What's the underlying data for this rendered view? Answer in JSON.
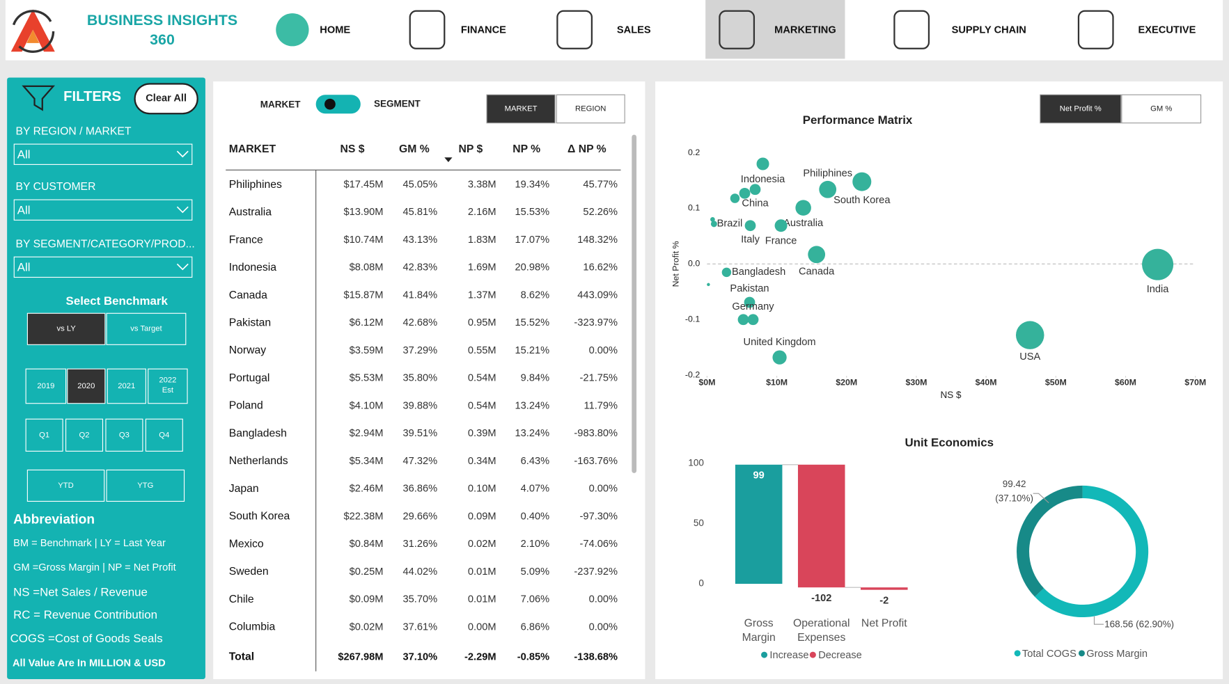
{
  "header": {
    "title_line1": "BUSINESS INSIGHTS",
    "title_line2": "360",
    "nav": [
      "HOME",
      "FINANCE",
      "SALES",
      "MARKETING",
      "SUPPLY CHAIN",
      "EXECUTIVE"
    ],
    "active": 3
  },
  "filters": {
    "title": "FILTERS",
    "clear": "Clear All",
    "dropdowns": [
      {
        "label": "BY REGION / MARKET",
        "value": "All"
      },
      {
        "label": "BY CUSTOMER",
        "value": "All"
      },
      {
        "label": "BY SEGMENT/CATEGORY/PROD...",
        "value": "All"
      }
    ],
    "benchmark_title": "Select Benchmark",
    "benchmark": [
      "vs LY",
      "vs Target"
    ],
    "benchmark_active": 0,
    "years": [
      "2019",
      "2020",
      "2021",
      "2022 Est"
    ],
    "year_active": 1,
    "quarters": [
      "Q1",
      "Q2",
      "Q3",
      "Q4"
    ],
    "periods": [
      "YTD",
      "YTG"
    ],
    "abbreviation_title": "Abbreviation",
    "abbreviations": [
      "BM = Benchmark  |  LY = Last Year",
      "GM =Gross Margin  |  NP = Net Profit",
      "NS =Net Sales / Revenue",
      "RC = Revenue Contribution",
      "COGS =Cost of Goods Seals"
    ],
    "note": "All Value Are In MILLION & USD"
  },
  "table": {
    "toggle": [
      "MARKET",
      "SEGMENT"
    ],
    "view_buttons": [
      "MARKET",
      "REGION"
    ],
    "view_active": 0,
    "columns": [
      "MARKET",
      "NS $",
      "GM %",
      "NP $",
      "NP %",
      "Δ NP %"
    ],
    "rows": [
      [
        "Philiphines",
        "$17.45M",
        "45.05%",
        "3.38M",
        "19.34%",
        "45.77%"
      ],
      [
        "Australia",
        "$13.90M",
        "45.81%",
        "2.16M",
        "15.53%",
        "52.26%"
      ],
      [
        "France",
        "$10.74M",
        "43.13%",
        "1.83M",
        "17.07%",
        "148.32%"
      ],
      [
        "Indonesia",
        "$8.08M",
        "42.83%",
        "1.69M",
        "20.98%",
        "16.62%"
      ],
      [
        "Canada",
        "$15.87M",
        "41.84%",
        "1.37M",
        "8.62%",
        "443.09%"
      ],
      [
        "Pakistan",
        "$6.12M",
        "42.68%",
        "0.95M",
        "15.52%",
        "-323.97%"
      ],
      [
        "Norway",
        "$3.59M",
        "37.29%",
        "0.55M",
        "15.21%",
        "0.00%"
      ],
      [
        "Portugal",
        "$5.53M",
        "35.80%",
        "0.54M",
        "9.84%",
        "-21.75%"
      ],
      [
        "Poland",
        "$4.10M",
        "39.88%",
        "0.54M",
        "13.24%",
        "11.79%"
      ],
      [
        "Bangladesh",
        "$2.94M",
        "39.51%",
        "0.39M",
        "13.24%",
        "-983.80%"
      ],
      [
        "Netherlands",
        "$5.34M",
        "47.32%",
        "0.34M",
        "6.43%",
        "-163.76%"
      ],
      [
        "Japan",
        "$2.46M",
        "36.86%",
        "0.10M",
        "4.07%",
        "0.00%"
      ],
      [
        "South Korea",
        "$22.38M",
        "29.66%",
        "0.09M",
        "0.40%",
        "-97.30%"
      ],
      [
        "Mexico",
        "$0.84M",
        "31.26%",
        "0.02M",
        "2.10%",
        "-74.06%"
      ],
      [
        "Sweden",
        "$0.25M",
        "44.02%",
        "0.01M",
        "5.09%",
        "-237.92%"
      ],
      [
        "Chile",
        "$0.09M",
        "35.70%",
        "0.01M",
        "7.06%",
        "0.00%"
      ],
      [
        "Columbia",
        "$0.02M",
        "37.61%",
        "0.00M",
        "6.86%",
        "0.00%"
      ]
    ],
    "total": [
      "Total",
      "$267.98M",
      "37.10%",
      "-2.29M",
      "-0.85%",
      "-138.68%"
    ]
  },
  "scatter": {
    "type": "scatter",
    "title": "Performance Matrix",
    "buttons": [
      "Net Profit %",
      "GM %"
    ],
    "button_active": 0,
    "x_label": "NS $",
    "y_label": "Net Profit %",
    "color": "#35b29b",
    "xlim": [
      0,
      70
    ],
    "xticks": [
      {
        "value": 0,
        "label": "$0M"
      },
      {
        "value": 10,
        "label": "$10M"
      },
      {
        "value": 20,
        "label": "$20M"
      },
      {
        "value": 30,
        "label": "$30M"
      },
      {
        "value": 40,
        "label": "$40M"
      },
      {
        "value": 50,
        "label": "$50M"
      },
      {
        "value": 60,
        "label": "$60M"
      },
      {
        "value": 70,
        "label": "$70M"
      }
    ],
    "ylim": [
      -0.2,
      0.2
    ],
    "yticks": [
      0.2,
      0.1,
      {
        "value": 0,
        "label": "0.0"
      },
      -0.1,
      -0.2
    ],
    "points": [
      {
        "label": "Indonesia",
        "x": 8.0,
        "y": 0.18,
        "size": 8
      },
      {
        "label": "China",
        "x": 6.9,
        "y": 0.134,
        "size": 7
      },
      {
        "label": null,
        "x": 5.4,
        "y": 0.127,
        "size": 7
      },
      {
        "label": null,
        "x": 4.0,
        "y": 0.118,
        "size": 6
      },
      {
        "label": "Philiphines",
        "x": 17.3,
        "y": 0.134,
        "size": 11
      },
      {
        "label": "South Korea",
        "x": 22.2,
        "y": 0.148,
        "size": 12
      },
      {
        "label": "Australia",
        "x": 13.8,
        "y": 0.101,
        "size": 10
      },
      {
        "label": "France",
        "x": 10.6,
        "y": 0.069,
        "size": 8
      },
      {
        "label": "Italy",
        "x": 6.2,
        "y": 0.069,
        "size": 7
      },
      {
        "label": "Brazil",
        "x": 1.0,
        "y": 0.072,
        "size": 4
      },
      {
        "label": null,
        "x": 0.8,
        "y": 0.08,
        "size": 3
      },
      {
        "label": "Canada",
        "x": 15.7,
        "y": 0.017,
        "size": 11
      },
      {
        "label": "Bangladesh",
        "x": 2.8,
        "y": -0.015,
        "size": 6
      },
      {
        "label": null,
        "x": 0.2,
        "y": -0.037,
        "size": 2
      },
      {
        "label": "Pakistan",
        "x": 6.1,
        "y": -0.069,
        "size": 7
      },
      {
        "label": "Germany",
        "x": 6.6,
        "y": -0.1,
        "size": 7
      },
      {
        "label": null,
        "x": 5.2,
        "y": -0.1,
        "size": 7
      },
      {
        "label": "United Kingdom",
        "x": 10.4,
        "y": -0.168,
        "size": 9
      },
      {
        "label": "USA",
        "x": 46.3,
        "y": -0.128,
        "size": 18
      },
      {
        "label": "India",
        "x": 64.6,
        "y": -0.001,
        "size": 20
      }
    ]
  },
  "waterfall": {
    "type": "waterfall",
    "title": "Unit Economics",
    "categories": [
      "Gross Margin",
      "Operational Expenses",
      "Net Profit"
    ],
    "values": [
      99,
      -102,
      -2
    ],
    "ylim": [
      -5,
      105
    ],
    "yticks": [
      0,
      50,
      100
    ],
    "legend": [
      {
        "name": "Increase",
        "color": "#1a9e9e"
      },
      {
        "name": "Decrease",
        "color": "#d9455a"
      }
    ]
  },
  "donut": {
    "type": "pie",
    "categories": [
      "Total COGS",
      "Gross Margin"
    ],
    "values": [
      168.56,
      99.42
    ],
    "value_labels": [
      "168.56 (62.90%)",
      "99.42 (37.10%)"
    ],
    "colors": [
      "#12b8b8",
      "#178a88"
    ]
  }
}
